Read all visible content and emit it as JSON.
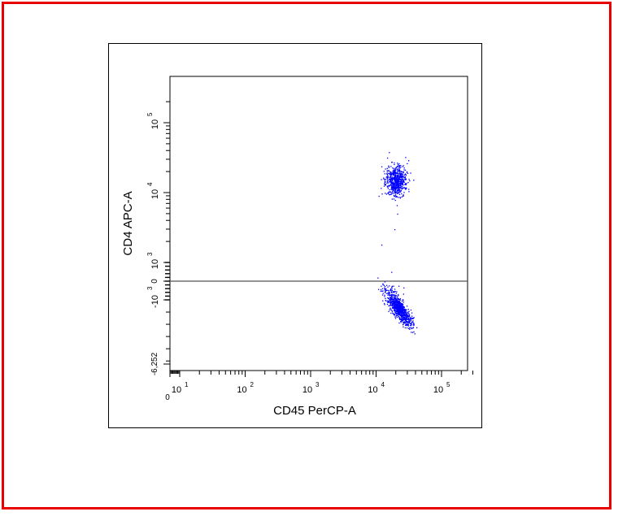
{
  "colors": {
    "frame": "#e80000",
    "points": "#0000ff",
    "gate_line": "#555555"
  },
  "chart_data": {
    "type": "scatter",
    "title": "",
    "xlabel": "CD45 PerCP-A",
    "ylabel": "CD4 APC-A",
    "x_scale": "biexponential",
    "y_scale": "biexponential",
    "xlim": [
      0,
      300000
    ],
    "ylim": [
      -6252,
      200000
    ],
    "x_ticks": [
      {
        "value": 0,
        "label": "0"
      },
      {
        "value": 10,
        "label": "10",
        "exp": "1"
      },
      {
        "value": 100,
        "label": "10",
        "exp": "2"
      },
      {
        "value": 1000,
        "label": "10",
        "exp": "3"
      },
      {
        "value": 10000,
        "label": "10",
        "exp": "4"
      },
      {
        "value": 100000,
        "label": "10",
        "exp": "5"
      }
    ],
    "y_ticks": [
      {
        "value": -6252,
        "label": "-6,252"
      },
      {
        "value": -1000,
        "label": "-10",
        "exp": "3"
      },
      {
        "value": 0,
        "label": "0"
      },
      {
        "value": 1000,
        "label": "10",
        "exp": "3"
      },
      {
        "value": 10000,
        "label": "10",
        "exp": "4"
      },
      {
        "value": 100000,
        "label": "10",
        "exp": "5"
      }
    ],
    "gates": [
      {
        "type": "horizontal-line",
        "y": 0
      }
    ],
    "series": [
      {
        "center_x": 20000,
        "center_y": 15000,
        "count": 650
      },
      {
        "center_x": 22000,
        "center_y": -1700,
        "count": 850
      }
    ],
    "outliers": [
      {
        "x": 12000,
        "y": 1800
      },
      {
        "x": 19000,
        "y": 3000
      },
      {
        "x": 21000,
        "y": 5000
      },
      {
        "x": 17000,
        "y": 500
      },
      {
        "x": 13000,
        "y": -200
      }
    ],
    "grid": false,
    "legend": "none"
  }
}
